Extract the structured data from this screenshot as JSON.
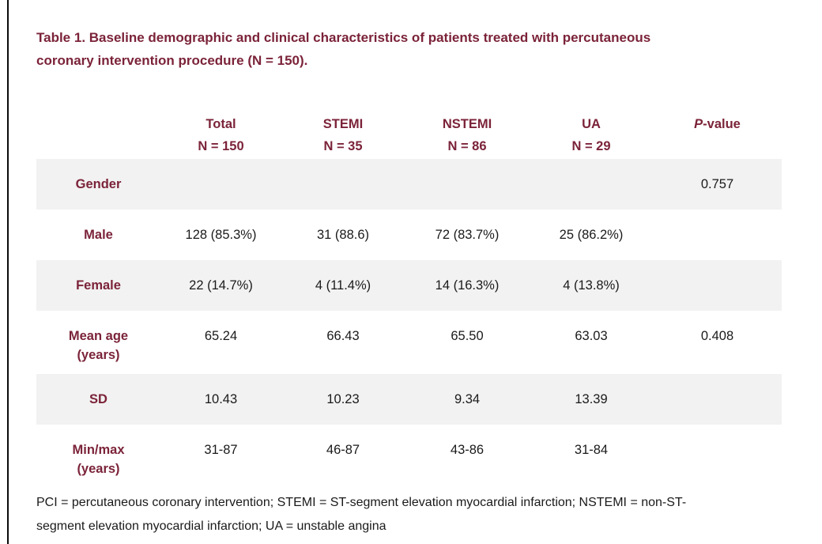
{
  "page": {
    "title": "Table 1. Baseline demographic and clinical characteristics of patients treated with percutaneous coronary intervention procedure (N = 150).",
    "footnote_line1": "PCI = percutaneous coronary intervention; STEMI = ST-segment elevation myocardial infarction; NSTEMI = non-ST-",
    "footnote_line2": "segment elevation myocardial infarction; UA = unstable angina"
  },
  "colors": {
    "accent_maroon": "#7B2339",
    "row_stripe": "#F2F2F2",
    "body_text": "#1A1A1A"
  },
  "table": {
    "columns": [
      {
        "label": "",
        "sublabel": ""
      },
      {
        "label": "Total",
        "sublabel": "N = 150"
      },
      {
        "label": "STEMI",
        "sublabel": "N = 35"
      },
      {
        "label": "NSTEMI",
        "sublabel": "N = 86"
      },
      {
        "label": "UA",
        "sublabel": "N = 29"
      },
      {
        "label_italic": "P",
        "label_rest": "-value",
        "sublabel": ""
      }
    ],
    "rows": [
      {
        "label": "Gender",
        "label_line2": "",
        "values": [
          "",
          "",
          "",
          "",
          "0.757"
        ]
      },
      {
        "label": "Male",
        "label_line2": "",
        "values": [
          "128 (85.3%)",
          "31 (88.6)",
          "72 (83.7%)",
          "25 (86.2%)",
          ""
        ]
      },
      {
        "label": "Female",
        "label_line2": "",
        "values": [
          "22 (14.7%)",
          "4 (11.4%)",
          "14 (16.3%)",
          "4 (13.8%)",
          ""
        ]
      },
      {
        "label": "Mean age",
        "label_line2": "(years)",
        "values": [
          "65.24",
          "66.43",
          "65.50",
          "63.03",
          "0.408"
        ]
      },
      {
        "label": "SD",
        "label_line2": "",
        "values": [
          "10.43",
          "10.23",
          "9.34",
          "13.39",
          ""
        ]
      },
      {
        "label": "Min/max",
        "label_line2": "(years)",
        "values": [
          "31-87",
          "46-87",
          "43-86",
          "31-84",
          ""
        ]
      }
    ]
  }
}
